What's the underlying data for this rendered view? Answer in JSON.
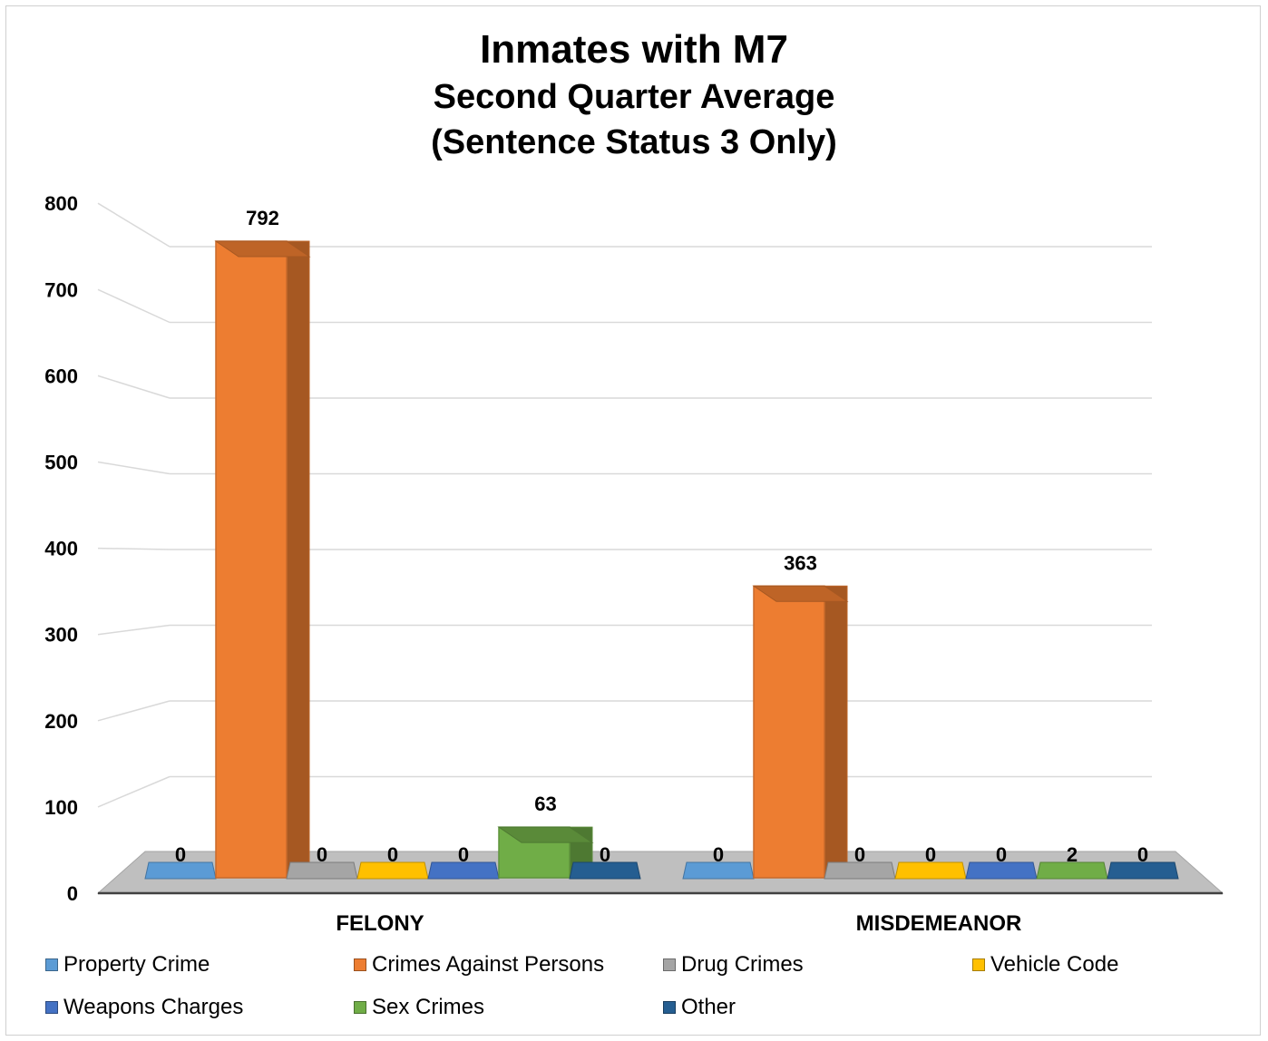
{
  "chart_data": {
    "type": "bar",
    "title": "Inmates with M7",
    "subtitle": [
      "Second Quarter Average",
      "(Sentence Status 3 Only)"
    ],
    "categories": [
      "FELONY",
      "MISDEMEANOR"
    ],
    "series": [
      {
        "name": "Property Crime",
        "values": [
          0,
          0
        ],
        "color": "#5b9bd5"
      },
      {
        "name": "Crimes Against Persons",
        "values": [
          792,
          363
        ],
        "color": "#ed7d31"
      },
      {
        "name": "Drug Crimes",
        "values": [
          0,
          0
        ],
        "color": "#a5a5a5"
      },
      {
        "name": "Vehicle Code",
        "values": [
          0,
          0
        ],
        "color": "#ffc000"
      },
      {
        "name": "Weapons Charges",
        "values": [
          0,
          0
        ],
        "color": "#4472c4"
      },
      {
        "name": "Sex Crimes",
        "values": [
          63,
          2
        ],
        "color": "#70ad47"
      },
      {
        "name": "Other",
        "values": [
          0,
          0
        ],
        "color": "#255e91"
      }
    ],
    "yticks": [
      "0",
      "100",
      "200",
      "300",
      "400",
      "500",
      "600",
      "700",
      "800"
    ],
    "ylim": [
      0,
      800
    ],
    "grid": true,
    "legend": "bottom"
  }
}
